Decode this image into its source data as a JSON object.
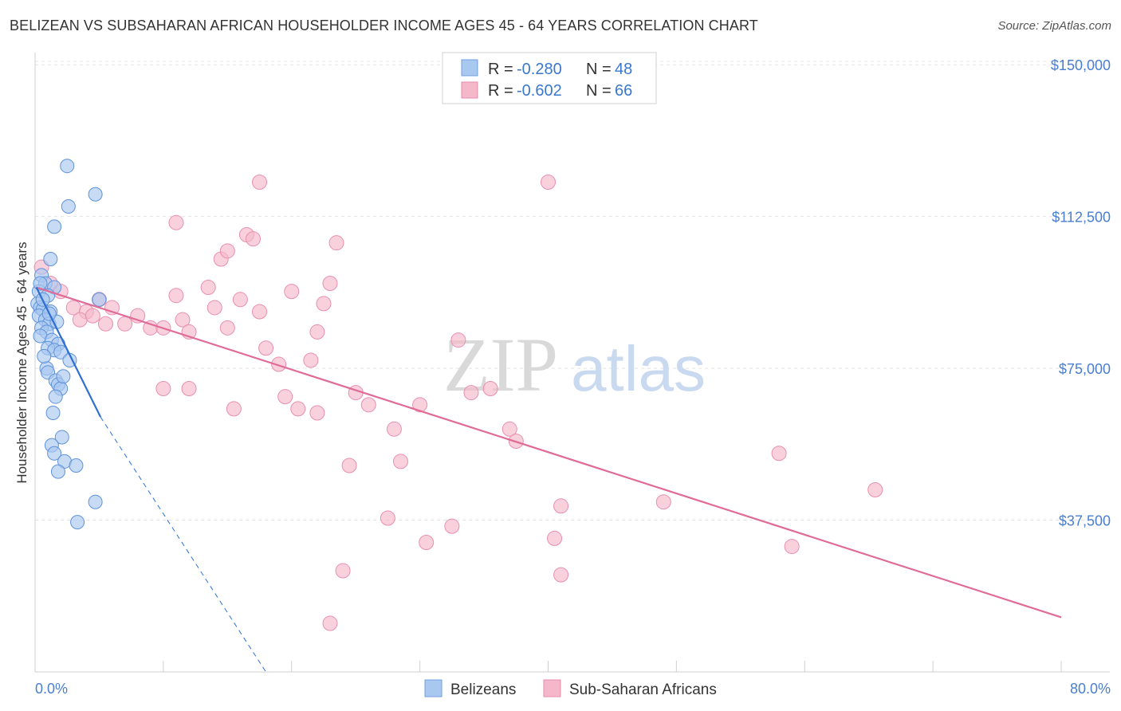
{
  "title": "BELIZEAN VS SUBSAHARAN AFRICAN HOUSEHOLDER INCOME AGES 45 - 64 YEARS CORRELATION CHART",
  "source": "Source: ZipAtlas.com",
  "watermark": {
    "zip": "ZIP",
    "atlas": "atlas"
  },
  "colors": {
    "blue": "#a9c8f0",
    "blue_line": "#2f6fcf",
    "pink": "#f5b8cb",
    "pink_line": "#e06b96",
    "label": "#4a7fcf"
  },
  "legend": {
    "rows": [
      {
        "r_label": "R = ",
        "r_value": "-0.280",
        "n_label": "N = ",
        "n_value": "48"
      },
      {
        "r_label": "R = ",
        "r_value": "-0.602",
        "n_label": "N = ",
        "n_value": "66"
      }
    ]
  },
  "chart_data": {
    "type": "scatter",
    "ylabel": "Householder Income Ages 45 - 64 years",
    "xlim": [
      0,
      80
    ],
    "ylim": [
      0,
      153000
    ],
    "x_tick_labels": [
      "0.0%",
      "80.0%"
    ],
    "y_ticks": [
      37500,
      75000,
      112500,
      150000
    ],
    "y_tick_labels": [
      "$37,500",
      "$75,000",
      "$112,500",
      "$150,000"
    ],
    "grid": true,
    "series": [
      {
        "name": "Belizeans",
        "trend": {
          "x": [
            0.1,
            5.1
          ],
          "y": [
            95000,
            63000
          ],
          "dashed_to": [
            18.0,
            0
          ]
        },
        "points": [
          [
            2.5,
            125000
          ],
          [
            4.7,
            118000
          ],
          [
            2.6,
            115000
          ],
          [
            1.5,
            110000
          ],
          [
            1.2,
            102000
          ],
          [
            0.5,
            98000
          ],
          [
            0.8,
            96000
          ],
          [
            1.5,
            95000
          ],
          [
            0.3,
            94000
          ],
          [
            1.0,
            93000
          ],
          [
            5.0,
            92000
          ],
          [
            0.2,
            91000
          ],
          [
            0.4,
            90000
          ],
          [
            0.6,
            89500
          ],
          [
            1.2,
            89000
          ],
          [
            0.3,
            88000
          ],
          [
            0.8,
            87000
          ],
          [
            1.1,
            86000
          ],
          [
            0.5,
            85000
          ],
          [
            0.9,
            84000
          ],
          [
            0.4,
            83000
          ],
          [
            1.3,
            82000
          ],
          [
            1.8,
            81000
          ],
          [
            1.0,
            80000
          ],
          [
            1.5,
            79500
          ],
          [
            2.0,
            79000
          ],
          [
            2.7,
            77000
          ],
          [
            0.9,
            75000
          ],
          [
            1.0,
            74000
          ],
          [
            1.6,
            72000
          ],
          [
            1.8,
            71000
          ],
          [
            2.0,
            70000
          ],
          [
            1.6,
            68000
          ],
          [
            1.4,
            64000
          ],
          [
            2.1,
            58000
          ],
          [
            1.3,
            56000
          ],
          [
            1.5,
            54000
          ],
          [
            2.3,
            52000
          ],
          [
            3.2,
            51000
          ],
          [
            1.8,
            49500
          ],
          [
            4.7,
            42000
          ],
          [
            3.3,
            37000
          ],
          [
            0.6,
            92000
          ],
          [
            1.7,
            86500
          ],
          [
            0.7,
            78000
          ],
          [
            2.2,
            73000
          ],
          [
            1.1,
            88500
          ],
          [
            0.4,
            96000
          ]
        ]
      },
      {
        "name": "Sub-Saharan Africans",
        "trend": {
          "x": [
            0.1,
            80.0
          ],
          "y": [
            95000,
            13500
          ]
        },
        "points": [
          [
            0.5,
            100000
          ],
          [
            1.2,
            96000
          ],
          [
            2.0,
            94000
          ],
          [
            3.0,
            90000
          ],
          [
            4.0,
            89000
          ],
          [
            5.0,
            92000
          ],
          [
            6.0,
            90000
          ],
          [
            7.0,
            86000
          ],
          [
            8.0,
            88000
          ],
          [
            9.0,
            85000
          ],
          [
            5.5,
            86000
          ],
          [
            3.5,
            87000
          ],
          [
            4.5,
            88000
          ],
          [
            11.0,
            93000
          ],
          [
            10.0,
            85000
          ],
          [
            11.5,
            87000
          ],
          [
            12.0,
            84000
          ],
          [
            13.5,
            95000
          ],
          [
            14.0,
            90000
          ],
          [
            16.0,
            92000
          ],
          [
            17.5,
            89000
          ],
          [
            15.0,
            85000
          ],
          [
            18.0,
            80000
          ],
          [
            19.0,
            76000
          ],
          [
            19.5,
            68000
          ],
          [
            20.0,
            94000
          ],
          [
            21.5,
            77000
          ],
          [
            22.0,
            84000
          ],
          [
            22.5,
            91000
          ],
          [
            23.0,
            96000
          ],
          [
            12.0,
            70000
          ],
          [
            10.0,
            70000
          ],
          [
            14.5,
            102000
          ],
          [
            15.0,
            104000
          ],
          [
            15.5,
            65000
          ],
          [
            16.5,
            108000
          ],
          [
            17.0,
            107000
          ],
          [
            20.5,
            65000
          ],
          [
            22.0,
            64000
          ],
          [
            23.5,
            106000
          ],
          [
            25.0,
            69000
          ],
          [
            24.5,
            51000
          ],
          [
            26.0,
            66000
          ],
          [
            28.0,
            60000
          ],
          [
            27.5,
            38000
          ],
          [
            28.5,
            52000
          ],
          [
            30.0,
            66000
          ],
          [
            30.5,
            32000
          ],
          [
            32.5,
            36000
          ],
          [
            33.0,
            82000
          ],
          [
            34.0,
            69000
          ],
          [
            35.5,
            70000
          ],
          [
            37.0,
            60000
          ],
          [
            37.5,
            57000
          ],
          [
            41.0,
            41000
          ],
          [
            40.5,
            33000
          ],
          [
            41.0,
            24000
          ],
          [
            40.0,
            121000
          ],
          [
            24.0,
            25000
          ],
          [
            23.0,
            12000
          ],
          [
            17.5,
            121000
          ],
          [
            11.0,
            111000
          ],
          [
            49.0,
            42000
          ],
          [
            58.0,
            54000
          ],
          [
            59.0,
            31000
          ],
          [
            65.5,
            45000
          ]
        ]
      }
    ]
  }
}
